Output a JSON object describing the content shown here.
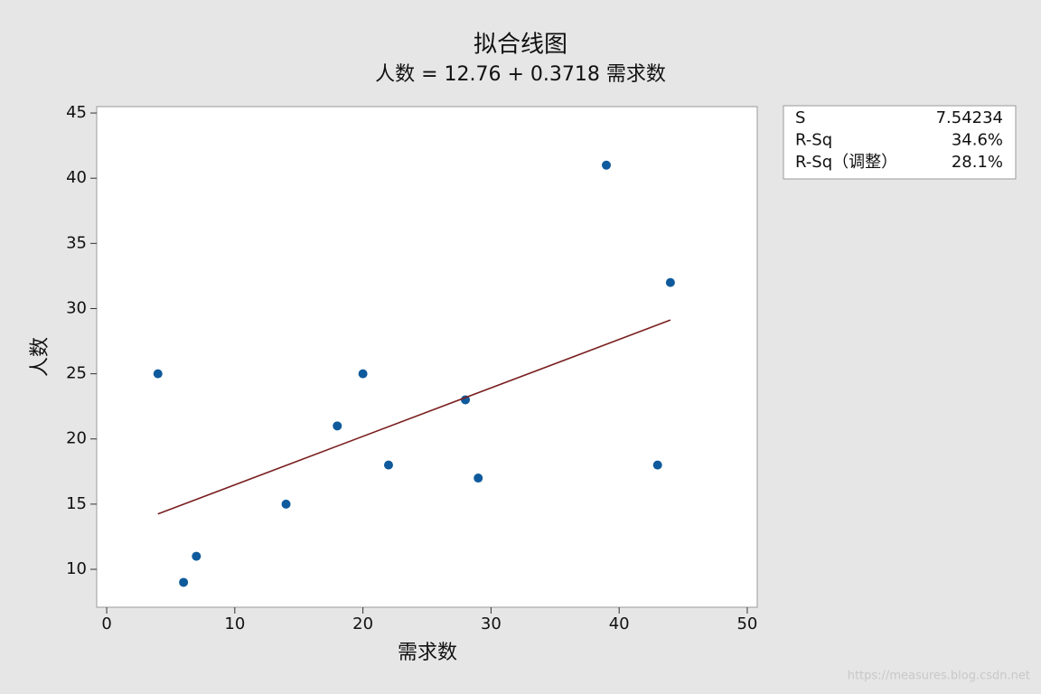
{
  "chart_data": {
    "type": "scatter",
    "title": "拟合线图",
    "subtitle": "人数 = 12.76 + 0.3718 需求数",
    "x_label": "需求数",
    "y_label": "人数",
    "series": [
      {
        "color": "#0f5a9c",
        "x": [
          4,
          6,
          7,
          14,
          18,
          20,
          22,
          28,
          29,
          39,
          43,
          44
        ],
        "values": [
          25,
          9,
          11,
          15,
          21,
          25,
          18,
          23,
          17,
          41,
          18,
          32
        ]
      },
      {
        "color": "#7a1f1f",
        "style": "line",
        "x": [
          4,
          44
        ],
        "values": [
          14.25,
          29.12
        ]
      }
    ],
    "xlim": [
      -0.78,
      50.78
    ],
    "xticks": [
      0,
      10,
      20,
      30,
      40,
      50
    ],
    "ylim": [
      7.09,
      45.49
    ],
    "yticks": [
      10,
      15,
      20,
      25,
      30,
      35,
      40,
      45
    ],
    "stats": [
      {
        "label": "S",
        "value": "7.54234"
      },
      {
        "label": "R-Sq",
        "value": "34.6%"
      },
      {
        "label": "R-Sq（调整）",
        "value": "28.1%"
      }
    ],
    "watermark": "https://measures.blog.csdn.net"
  }
}
